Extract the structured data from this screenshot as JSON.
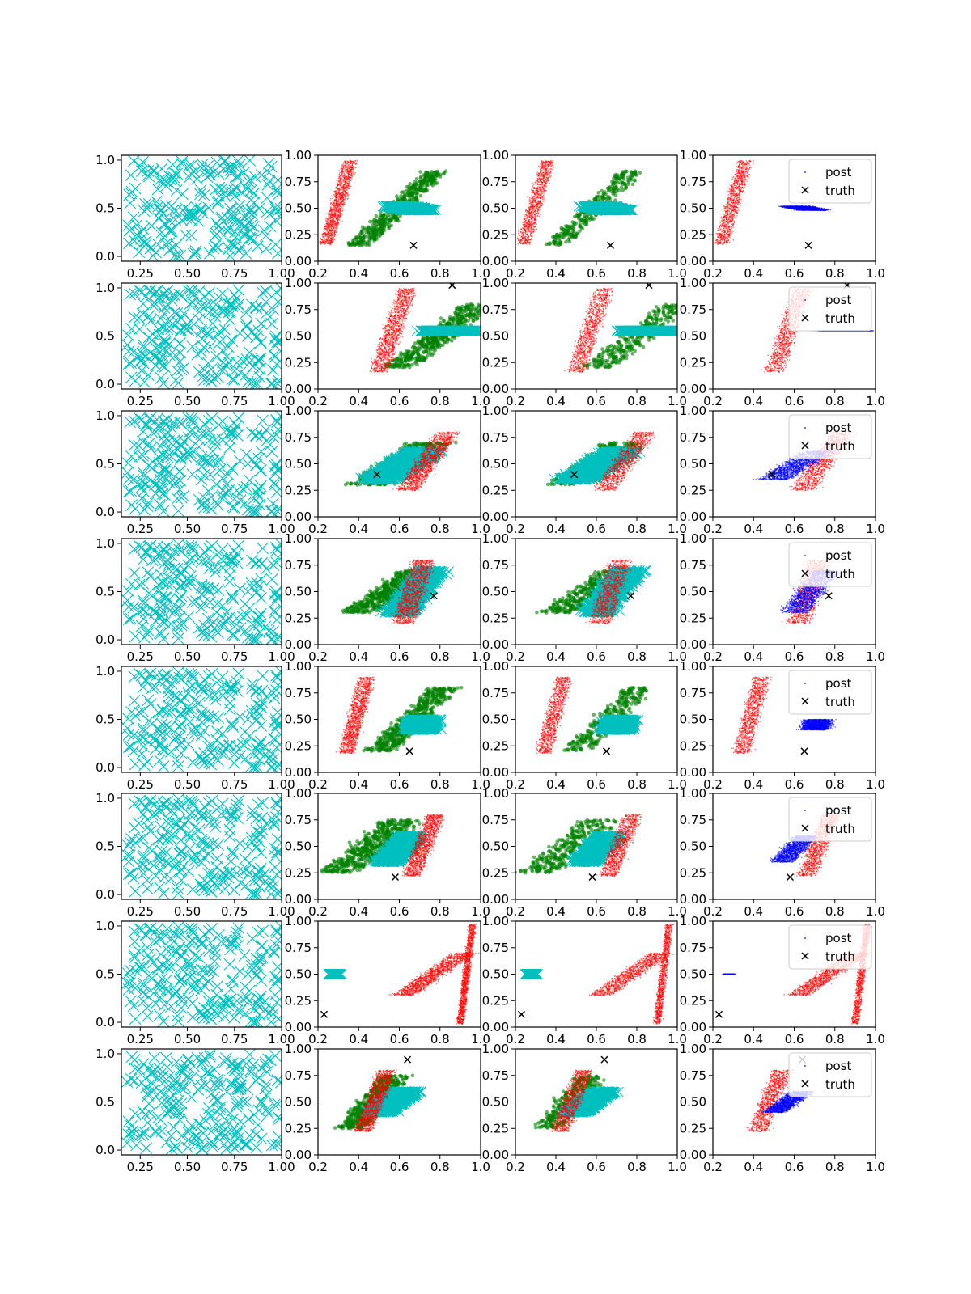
{
  "figure": {
    "rows": 8,
    "cols": 4,
    "colors": {
      "prior": "#00bfbf",
      "green": "#008000",
      "red": "#ff0000",
      "blue": "#0000ff",
      "truth": "#000000"
    }
  },
  "chart_data": {
    "type": "scatter",
    "layout": "8x4 grid of scatter subplots",
    "legend": {
      "entries": [
        "post",
        "truth"
      ],
      "placement": "top-right",
      "panel_column": 4
    },
    "axes": {
      "col1": {
        "xlim": [
          0.15,
          1.0
        ],
        "ylim": [
          -0.05,
          1.05
        ],
        "xticks": [
          "0.25",
          "0.50",
          "0.75",
          "1.00"
        ],
        "yticks": [
          "0.0",
          "0.5",
          "1.0"
        ]
      },
      "cols234": {
        "xlim": [
          0.2,
          1.0
        ],
        "ylim": [
          0.0,
          1.0
        ],
        "xticks": [
          "0.2",
          "0.4",
          "0.6",
          "0.8",
          "1.0"
        ],
        "yticks": [
          "0.00",
          "0.25",
          "0.50",
          "0.75",
          "1.00"
        ]
      }
    },
    "rows": [
      {
        "truth": [
          0.67,
          0.15
        ],
        "red": [
          [
            0.24,
            0.36,
            0.06,
            0.16,
            0.95
          ]
        ],
        "blue": [
          [
            0.7,
            0.6,
            0.13,
            0.48,
            0.52
          ]
        ],
        "green": [
          [
            0.4,
            0.78,
            0.1,
            0.15,
            0.85
          ]
        ]
      },
      {
        "truth": [
          0.86,
          0.98
        ],
        "red": [
          [
            0.5,
            0.64,
            0.08,
            0.16,
            0.95
          ]
        ],
        "blue": [
          [
            0.85,
            0.7,
            0.2,
            0.55,
            0.55
          ]
        ],
        "green": [
          [
            0.6,
            1.0,
            0.14,
            0.2,
            0.8
          ]
        ]
      },
      {
        "truth": [
          0.49,
          0.4
        ],
        "red": [
          [
            0.64,
            0.84,
            0.1,
            0.25,
            0.8
          ]
        ],
        "blue": [
          [
            0.5,
            0.72,
            0.14,
            0.35,
            0.62
          ]
        ],
        "green": [
          [
            0.45,
            0.75,
            0.18,
            0.3,
            0.7
          ]
        ]
      },
      {
        "truth": [
          0.77,
          0.46
        ],
        "red": [
          [
            0.62,
            0.72,
            0.1,
            0.2,
            0.8
          ]
        ],
        "blue": [
          [
            0.6,
            0.76,
            0.12,
            0.3,
            0.7
          ]
        ],
        "green": [
          [
            0.4,
            0.7,
            0.15,
            0.3,
            0.7
          ]
        ]
      },
      {
        "truth": [
          0.65,
          0.2
        ],
        "red": [
          [
            0.34,
            0.44,
            0.07,
            0.18,
            0.9
          ]
        ],
        "blue": [
          [
            0.7,
            0.72,
            0.12,
            0.4,
            0.5
          ]
        ],
        "green": [
          [
            0.5,
            0.82,
            0.12,
            0.2,
            0.8
          ]
        ]
      },
      {
        "truth": [
          0.58,
          0.21
        ],
        "red": [
          [
            0.66,
            0.78,
            0.08,
            0.22,
            0.8
          ]
        ],
        "blue": [
          [
            0.54,
            0.66,
            0.1,
            0.35,
            0.6
          ]
        ],
        "green": [
          [
            0.3,
            0.62,
            0.16,
            0.25,
            0.75
          ]
        ]
      },
      {
        "truth": [
          0.23,
          0.12
        ],
        "red": [
          [
            0.62,
            0.92,
            0.1,
            0.3,
            0.7
          ],
          [
            0.9,
            0.96,
            0.03,
            0.03,
            0.97
          ]
        ],
        "blue": [
          [
            0.28,
            0.3,
            0.04,
            0.5,
            0.5
          ]
        ],
        "green": []
      },
      {
        "truth": [
          0.64,
          0.9
        ],
        "red": [
          [
            0.42,
            0.54,
            0.08,
            0.22,
            0.8
          ]
        ],
        "blue": [
          [
            0.5,
            0.64,
            0.1,
            0.4,
            0.6
          ]
        ],
        "green": [
          [
            0.36,
            0.58,
            0.12,
            0.25,
            0.75
          ]
        ]
      }
    ]
  }
}
